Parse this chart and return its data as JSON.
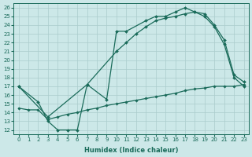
{
  "xlabel": "Humidex (Indice chaleur)",
  "ylabel": "",
  "xlim": [
    -0.5,
    23.5
  ],
  "ylim": [
    11.5,
    26.5
  ],
  "xticks": [
    0,
    1,
    2,
    3,
    4,
    5,
    6,
    7,
    8,
    9,
    10,
    11,
    12,
    13,
    14,
    15,
    16,
    17,
    18,
    19,
    20,
    21,
    22,
    23
  ],
  "yticks": [
    12,
    13,
    14,
    15,
    16,
    17,
    18,
    19,
    20,
    21,
    22,
    23,
    24,
    25,
    26
  ],
  "bg_color": "#cce8e8",
  "line_color": "#1a6b5a",
  "grid_color": "#aacccc",
  "line1_x": [
    0,
    2,
    3,
    4,
    5,
    6,
    7,
    9,
    10,
    11,
    13,
    14,
    15,
    16,
    17,
    18,
    19,
    20,
    21,
    22,
    23
  ],
  "line1_y": [
    17,
    15.2,
    13.0,
    12.0,
    12.0,
    12.0,
    17.2,
    15.5,
    23.3,
    23.3,
    24.5,
    25.0,
    25.0,
    25.5,
    26.0,
    25.5,
    25.0,
    23.8,
    21.8,
    18.0,
    17.0
  ],
  "line2_x": [
    0,
    3,
    7,
    10,
    11,
    12,
    13,
    14,
    15,
    16,
    17,
    18,
    19,
    20,
    21,
    22,
    23
  ],
  "line2_y": [
    17,
    13.5,
    17.2,
    21.0,
    22.0,
    23.0,
    23.8,
    24.5,
    24.8,
    25.0,
    25.3,
    25.5,
    25.3,
    24.0,
    22.3,
    18.3,
    17.5
  ],
  "line3_x": [
    0,
    1,
    2,
    3,
    4,
    5,
    6,
    7,
    8,
    9,
    10,
    11,
    12,
    13,
    14,
    15,
    16,
    17,
    18,
    19,
    20,
    21,
    22,
    23
  ],
  "line3_y": [
    14.5,
    14.3,
    14.3,
    13.2,
    13.5,
    13.8,
    14.0,
    14.3,
    14.5,
    14.8,
    15.0,
    15.2,
    15.4,
    15.6,
    15.8,
    16.0,
    16.2,
    16.5,
    16.7,
    16.8,
    17.0,
    17.0,
    17.0,
    17.2
  ]
}
